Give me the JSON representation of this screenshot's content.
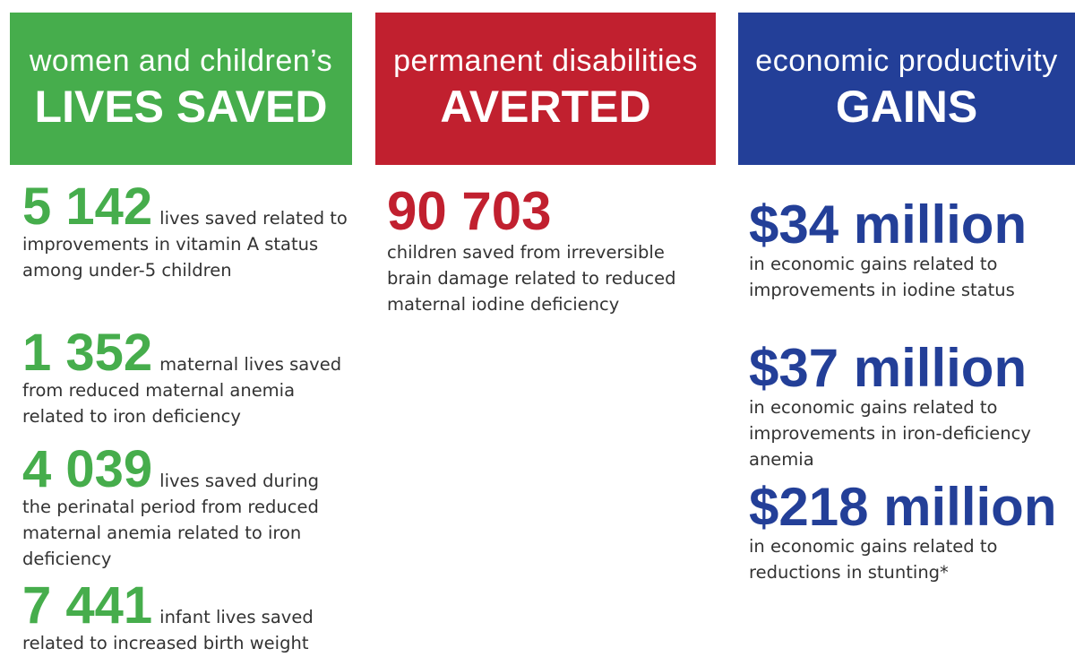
{
  "columns": [
    {
      "subtitle": "women and children’s",
      "title": "LIVES SAVED",
      "items": [
        {
          "number": "5 142",
          "text": "lives saved related to improvements in vitamin A status among under-5 children"
        },
        {
          "number": "1 352",
          "text": "maternal lives saved from reduced maternal anemia related to iron deficiency"
        },
        {
          "number": "4 039",
          "text": "lives saved during the perinatal period from reduced maternal anemia related to iron deficiency"
        },
        {
          "number": "7 441",
          "text": "infant lives saved related to increased birth weight"
        }
      ]
    },
    {
      "subtitle": "permanent disabilities",
      "title": "AVERTED",
      "items": [
        {
          "number": "90 703",
          "text": "children saved from irreversible brain damage related to reduced maternal iodine deficiency"
        }
      ]
    },
    {
      "subtitle": "economic productivity",
      "title": "GAINS",
      "items": [
        {
          "number": "$34 million",
          "text": "in economic gains related to improvements in iodine status"
        },
        {
          "number": "$37 million",
          "text": "in economic gains related to improvements in iron-deficiency anemia"
        },
        {
          "number": "$218 million",
          "text": "in economic gains related to reductions in stunting*"
        }
      ]
    }
  ]
}
